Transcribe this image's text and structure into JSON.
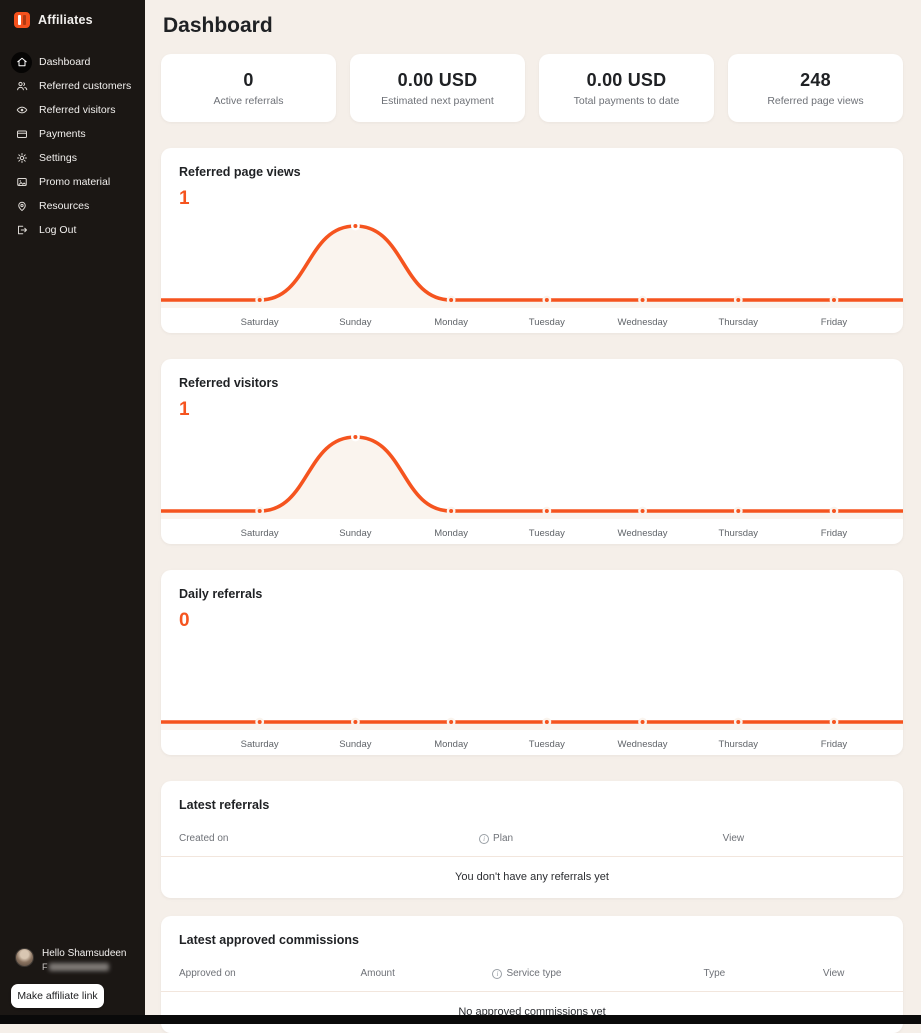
{
  "colors": {
    "accent": "#f5541f",
    "chart_fill": "#faf4ee",
    "sidebar_bg": "#1b1714",
    "main_bg": "#f5efe9"
  },
  "sidebar": {
    "brand": "Affiliates",
    "items": [
      {
        "label": "Dashboard",
        "icon": "home",
        "active": true
      },
      {
        "label": "Referred customers",
        "icon": "users",
        "active": false
      },
      {
        "label": "Referred visitors",
        "icon": "eye",
        "active": false
      },
      {
        "label": "Payments",
        "icon": "credit-card",
        "active": false
      },
      {
        "label": "Settings",
        "icon": "gear",
        "active": false
      },
      {
        "label": "Promo material",
        "icon": "image",
        "active": false
      },
      {
        "label": "Resources",
        "icon": "map-pin",
        "active": false
      },
      {
        "label": "Log Out",
        "icon": "logout",
        "active": false
      }
    ],
    "user": {
      "greeting": "Hello Shamsudeen",
      "id_prefix": "F"
    },
    "cta_label": "Make affiliate link"
  },
  "header": {
    "title": "Dashboard"
  },
  "stats": [
    {
      "value": "0",
      "label": "Active referrals"
    },
    {
      "value": "0.00 USD",
      "label": "Estimated next payment"
    },
    {
      "value": "0.00 USD",
      "label": "Total payments to date"
    },
    {
      "value": "248",
      "label": "Referred page views"
    }
  ],
  "chart_data": [
    {
      "type": "area",
      "title": "Referred page views",
      "categories": [
        "Saturday",
        "Sunday",
        "Monday",
        "Tuesday",
        "Wednesday",
        "Thursday",
        "Friday"
      ],
      "values": [
        0,
        1,
        0,
        0,
        0,
        0,
        0
      ],
      "ymax_label": "1",
      "ylim": [
        0,
        1
      ],
      "grid": false,
      "legend": false
    },
    {
      "type": "area",
      "title": "Referred visitors",
      "categories": [
        "Saturday",
        "Sunday",
        "Monday",
        "Tuesday",
        "Wednesday",
        "Thursday",
        "Friday"
      ],
      "values": [
        0,
        1,
        0,
        0,
        0,
        0,
        0
      ],
      "ymax_label": "1",
      "ylim": [
        0,
        1
      ],
      "grid": false,
      "legend": false
    },
    {
      "type": "area",
      "title": "Daily referrals",
      "categories": [
        "Saturday",
        "Sunday",
        "Monday",
        "Tuesday",
        "Wednesday",
        "Thursday",
        "Friday"
      ],
      "values": [
        0,
        0,
        0,
        0,
        0,
        0,
        0
      ],
      "ymax_label": "0",
      "ylim": [
        0,
        1
      ],
      "grid": false,
      "legend": false
    }
  ],
  "tables": [
    {
      "title": "Latest referrals",
      "columns": [
        {
          "label": "Created on",
          "info": false
        },
        {
          "label": "Plan",
          "info": true
        },
        {
          "label": "View",
          "info": false
        }
      ],
      "empty": "You don't have any referrals yet"
    },
    {
      "title": "Latest approved commissions",
      "columns": [
        {
          "label": "Approved on",
          "info": false
        },
        {
          "label": "Amount",
          "info": false
        },
        {
          "label": "Service type",
          "info": true
        },
        {
          "label": "Type",
          "info": false
        },
        {
          "label": "View",
          "info": false
        }
      ],
      "empty": "No approved commissions yet"
    }
  ]
}
